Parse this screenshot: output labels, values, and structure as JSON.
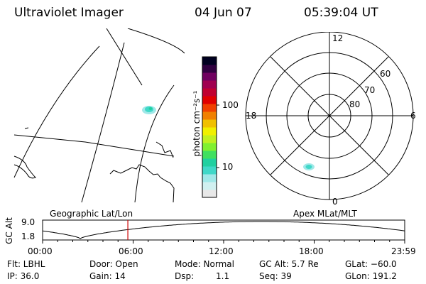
{
  "header": {
    "title": "Ultraviolet Imager",
    "date": "04 Jun 07",
    "time": "05:39:04 UT"
  },
  "colorbar": {
    "unit_label": "photon cm⁻²s⁻¹",
    "tick_labels": [
      "100",
      "10"
    ],
    "colors": [
      "#e8e8e8",
      "#d0f0f0",
      "#a0e8e8",
      "#40d8c8",
      "#20d0a0",
      "#40e060",
      "#80f030",
      "#c0f020",
      "#f0f000",
      "#f0c000",
      "#f08000",
      "#f04000",
      "#e00000",
      "#c00030",
      "#a00050",
      "#700060",
      "#300040",
      "#000020"
    ]
  },
  "geo_panel": {
    "label": "Geographic Lat/Lon"
  },
  "polar_panel": {
    "label": "Apex MLat/MLT",
    "mlt_labels": [
      "12",
      "6",
      "0",
      "18"
    ],
    "lat_labels": [
      "60",
      "70",
      "80"
    ]
  },
  "altitude_plot": {
    "y_title": "GC Alt",
    "y_ticks": [
      "9.0",
      "1.8"
    ],
    "x_ticks": [
      "00:00",
      "06:00",
      "12:00",
      "18:00",
      "23:59"
    ],
    "cursor_time_hours": 5.65,
    "cursor_color": "#cc0000"
  },
  "info": {
    "filter": "Flt: LBHL",
    "door": "Door: Open",
    "mode": "Mode: Normal",
    "gc_alt": "GC Alt: 5.7 Re",
    "glat": "GLat: −60.0",
    "ip": "IP: 36.0",
    "gain": "Gain: 14",
    "dsp_label": "Dsp:",
    "dsp_value": "1.1",
    "seq": "Seq: 39",
    "glon": "GLon: 191.2"
  }
}
